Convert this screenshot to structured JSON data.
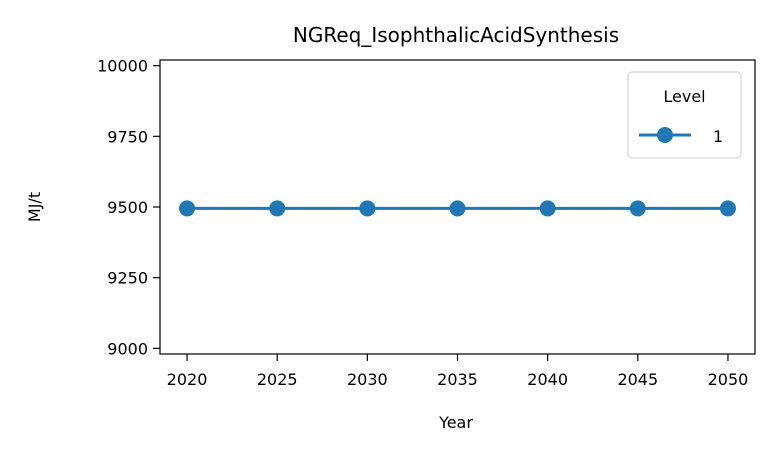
{
  "chart_data": {
    "type": "line",
    "title": "NGReq_IsophthalicAcidSynthesis",
    "xlabel": "Year",
    "ylabel": "MJ/t",
    "x": [
      2020,
      2025,
      2030,
      2035,
      2040,
      2045,
      2050
    ],
    "x_ticks": [
      "2020",
      "2025",
      "2030",
      "2035",
      "2040",
      "2045",
      "2050"
    ],
    "y_ticks": [
      "9000",
      "9250",
      "9500",
      "9750",
      "10000"
    ],
    "xlim": [
      2018.5,
      2051.5
    ],
    "ylim": [
      8980,
      10020
    ],
    "grid": false,
    "legend": {
      "title": "Level",
      "position": "top-right"
    },
    "series": [
      {
        "name": "1",
        "color": "#1f77b4",
        "marker": "circle",
        "values": [
          9495,
          9495,
          9495,
          9495,
          9495,
          9495,
          9495
        ]
      }
    ]
  }
}
